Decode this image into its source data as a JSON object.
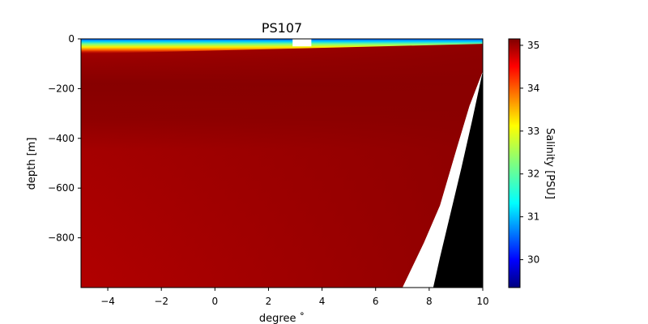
{
  "chart_data": {
    "type": "heatmap",
    "title": "PS107",
    "xlabel": "degree ˚",
    "ylabel": "depth [m]",
    "xlim": [
      -5,
      10
    ],
    "ylim": [
      -1000,
      0
    ],
    "x_ticks": [
      -4,
      -2,
      0,
      2,
      4,
      6,
      8,
      10
    ],
    "x_tick_labels": [
      "−4",
      "−2",
      "0",
      "2",
      "4",
      "6",
      "8",
      "10"
    ],
    "y_ticks": [
      0,
      -200,
      -400,
      -600,
      -800
    ],
    "y_tick_labels": [
      "0",
      "−200",
      "−400",
      "−600",
      "−800"
    ],
    "colorbar": {
      "label": "Salinity [PSU]",
      "range": [
        29.35,
        35.15
      ],
      "ticks": [
        30,
        31,
        32,
        33,
        34,
        35
      ],
      "tick_labels": [
        "30",
        "31",
        "32",
        "33",
        "34",
        "35"
      ],
      "colormap": "jet"
    },
    "salinity_field": {
      "surface_min_psu": 29.5,
      "fresh_layer_bottom_depth": [
        [
          -5,
          -60
        ],
        [
          10,
          -20
        ]
      ],
      "deep_value_psu": 35.0,
      "core_max_psu": 35.15,
      "core_depth_range": [
        -100,
        -450
      ]
    },
    "data_coverage": {
      "bottom_limit_of_data": [
        {
          "x": -5,
          "depth": -1000
        },
        {
          "x": -4.3,
          "depth": -1000
        },
        {
          "x": 6.0,
          "depth": -1000
        },
        {
          "x": 7.0,
          "depth": -1000
        },
        {
          "x": 7.8,
          "depth": -820
        },
        {
          "x": 8.4,
          "depth": -670
        },
        {
          "x": 9.0,
          "depth": -450
        },
        {
          "x": 9.5,
          "depth": -270
        },
        {
          "x": 10,
          "depth": -130
        }
      ],
      "missing_surface_gap": {
        "x": [
          2.9,
          3.6
        ],
        "depth": [
          0,
          -30
        ]
      }
    },
    "seafloor": [
      {
        "x": 8.15,
        "depth": -1000
      },
      {
        "x": 8.4,
        "depth": -880
      },
      {
        "x": 8.8,
        "depth": -700
      },
      {
        "x": 9.2,
        "depth": -520
      },
      {
        "x": 9.6,
        "depth": -330
      },
      {
        "x": 10,
        "depth": -130
      }
    ],
    "grid": false,
    "legend": "none"
  },
  "colors": {
    "seafloor": "#000000",
    "background": "#ffffff",
    "deep_water": "#b10000",
    "core_water": "#8a0000"
  }
}
